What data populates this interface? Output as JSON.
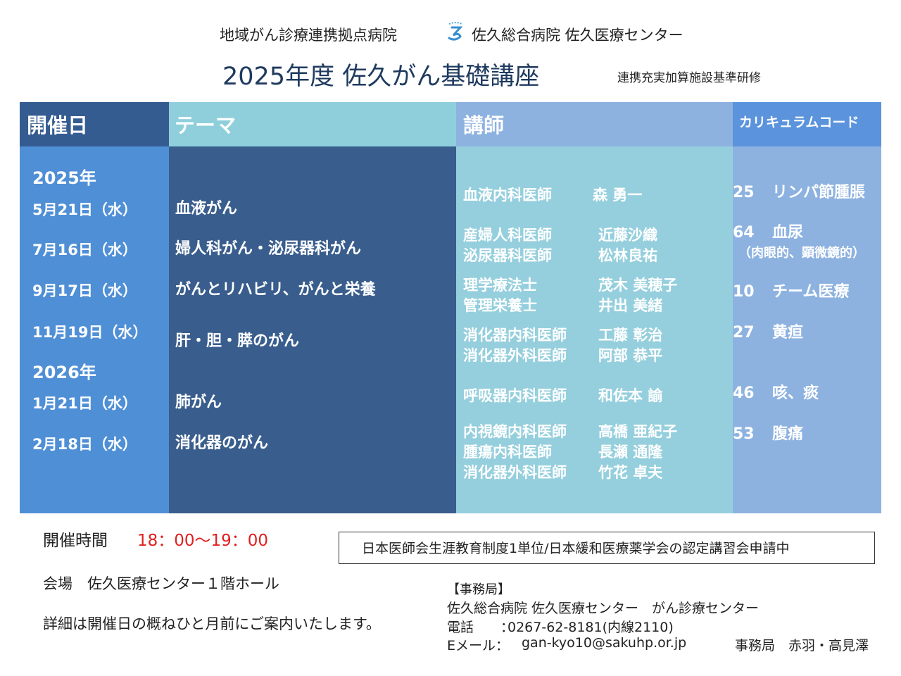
{
  "header": {
    "network_label": "地域がん診療連携拠点病院",
    "hospital_name": "佐久総合病院 佐久医療センター",
    "title": "2025年度 佐久がん基礎講座",
    "subtitle": "連携充実加算施設基準研修",
    "logo_icon": "hospital-logo-icon",
    "title_color": "#1f3a5f"
  },
  "table": {
    "headers": {
      "date": "開催日",
      "theme": "テーマ",
      "lecturer": "講師",
      "code": "カリキュラムコード"
    },
    "years": [
      "2025年",
      "2026年"
    ],
    "rows": [
      {
        "date": "5月21日（水）",
        "theme": "血液がん",
        "lecturers": [
          {
            "role": "血液内科医師",
            "name": "森 勇一"
          }
        ],
        "code": "25",
        "code_label": "リンパ節腫脹",
        "code_note": ""
      },
      {
        "date": "7月16日（水）",
        "theme": "婦人科がん・泌尿器科がん",
        "lecturers": [
          {
            "role": "産婦人科医師",
            "name": "近藤沙織"
          },
          {
            "role": "泌尿器科医師",
            "name": "松林良祐"
          }
        ],
        "code": "64",
        "code_label": "血尿",
        "code_note": "（肉眼的、顕微鏡的）"
      },
      {
        "date": "9月17日（水）",
        "theme": "がんとリハビリ、がんと栄養",
        "lecturers": [
          {
            "role": "理学療法士",
            "name": "茂木 美穂子"
          },
          {
            "role": "管理栄養士",
            "name": "井出 美緒"
          }
        ],
        "code": "10",
        "code_label": "チーム医療",
        "code_note": ""
      },
      {
        "date": "11月19日（水）",
        "theme": "肝・胆・膵のがん",
        "lecturers": [
          {
            "role": "消化器内科医師",
            "name": "工藤 彰治"
          },
          {
            "role": "消化器外科医師",
            "name": "阿部 恭平"
          }
        ],
        "code": "27",
        "code_label": "黄疸",
        "code_note": ""
      },
      {
        "date": "1月21日（水）",
        "theme": "肺がん",
        "lecturers": [
          {
            "role": "呼吸器内科医師",
            "name": "和佐本 諭"
          }
        ],
        "code": "46",
        "code_label": "咳、痰",
        "code_note": ""
      },
      {
        "date": "2月18日（水）",
        "theme": "消化器のがん",
        "lecturers": [
          {
            "role": "内視鏡内科医師",
            "name": "高橋 亜紀子"
          },
          {
            "role": "腫瘍内科医師",
            "name": "長瀬 通隆"
          },
          {
            "role": "消化器外科医師",
            "name": "竹花 卓夫"
          }
        ],
        "code": "53",
        "code_label": "腹痛",
        "code_note": ""
      }
    ],
    "colors": {
      "date_column": "#4f8fd6",
      "theme_column": "#395d8d",
      "lecturer_column": "#95cfdd",
      "code_column": "#8db2e0"
    }
  },
  "footer": {
    "time_label": "開催時間",
    "time_value": "18：00～19：00",
    "time_color": "#e02020",
    "venue": "会場　佐久医療センター１階ホール",
    "detail": "詳細は開催日の概ねひと月前にご案内いたします。",
    "credit_notice": "日本医師会生涯教育制度1単位/日本緩和医療薬学会の認定講習会申請中",
    "office": {
      "heading": "【事務局】",
      "name": "佐久総合病院 佐久医療センター　がん診療センター",
      "tel_label": "電話　　：",
      "tel": "0267-62-8181(内線2110)",
      "mail_label": "Eメール：",
      "mail": "gan-kyo10@sakuhp.or.jp",
      "staff": "事務局　赤羽・高見澤"
    }
  }
}
